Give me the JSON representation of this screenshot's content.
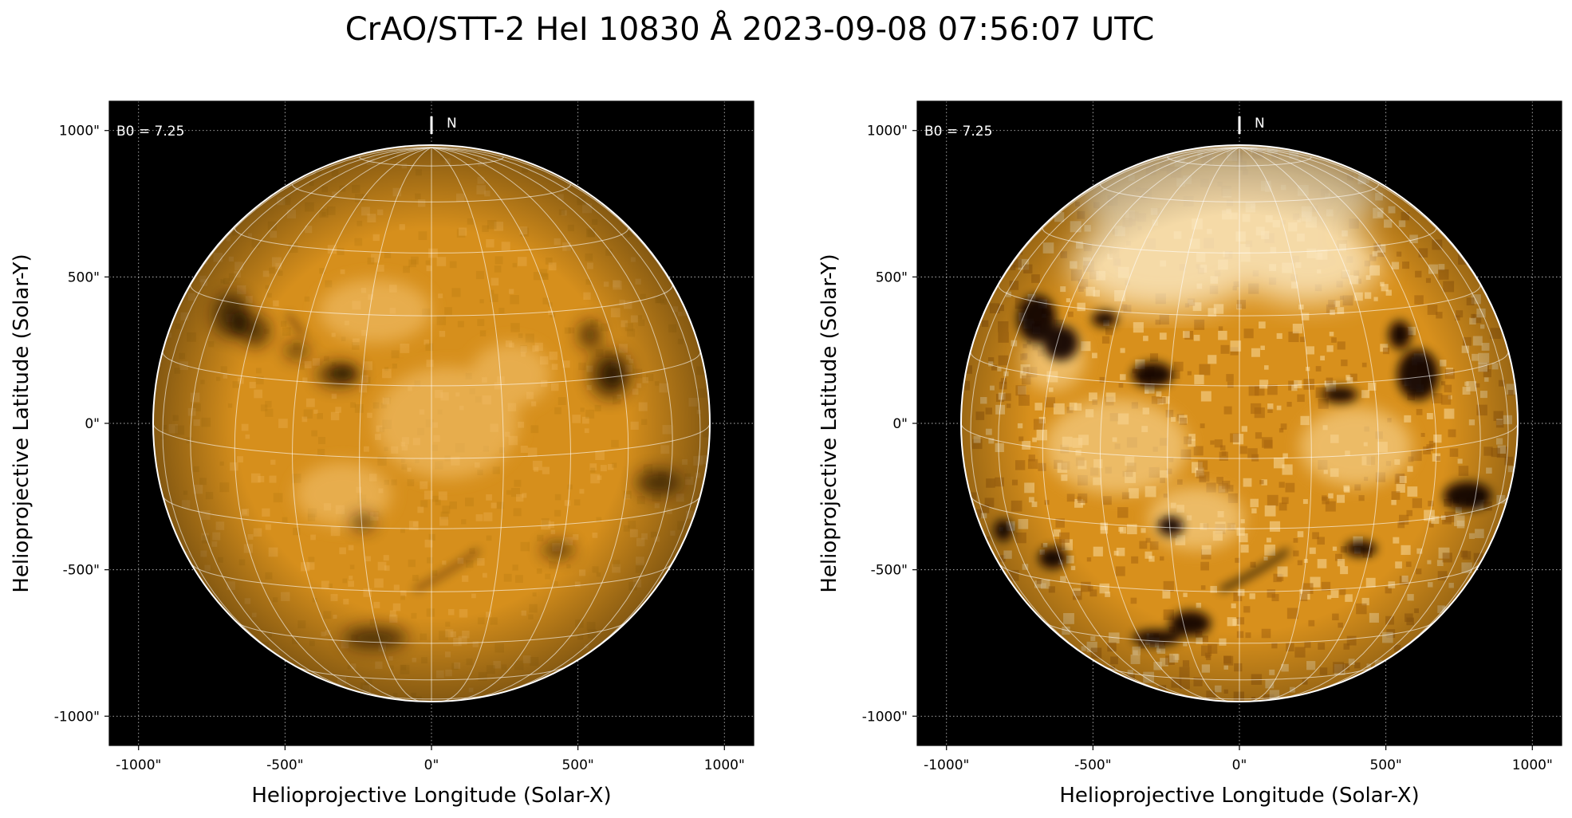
{
  "figure": {
    "title": "CrAO/STT-2 HeI 10830 Å 2023-09-08 07:56:07 UTC"
  },
  "colors": {
    "disk_base": "#e39a1e",
    "disk_light": "#f3c270",
    "disk_dark": "#1a0b00",
    "background": "#000000",
    "grid": "#ffffff"
  },
  "panels": [
    {
      "id": "left",
      "b0_label": "B0 = 7.25",
      "north_label": "N",
      "xlabel": "Helioprojective Longitude (Solar-X)",
      "ylabel": "Helioprojective Latitude (Solar-Y)",
      "x_ticks": [
        "-1000\"",
        "-500\"",
        "0\"",
        "500\"",
        "1000\""
      ],
      "y_ticks": [
        "1000\"",
        "500\"",
        "0\"",
        "-500\"",
        "-1000\""
      ],
      "x_range": [
        -1100,
        1100
      ],
      "y_range": [
        -1100,
        1100
      ],
      "solar_radius": 950,
      "b0": 7.25,
      "enhanced": false
    },
    {
      "id": "right",
      "b0_label": "B0 = 7.25",
      "north_label": "N",
      "xlabel": "Helioprojective Longitude (Solar-X)",
      "ylabel": "Helioprojective Latitude (Solar-Y)",
      "x_ticks": [
        "-1000\"",
        "-500\"",
        "0\"",
        "500\"",
        "1000\""
      ],
      "y_ticks": [
        "1000\"",
        "500\"",
        "0\"",
        "-500\"",
        "-1000\""
      ],
      "x_range": [
        -1100,
        1100
      ],
      "y_range": [
        -1100,
        1100
      ],
      "solar_radius": 950,
      "b0": 7.25,
      "enhanced": true
    }
  ]
}
